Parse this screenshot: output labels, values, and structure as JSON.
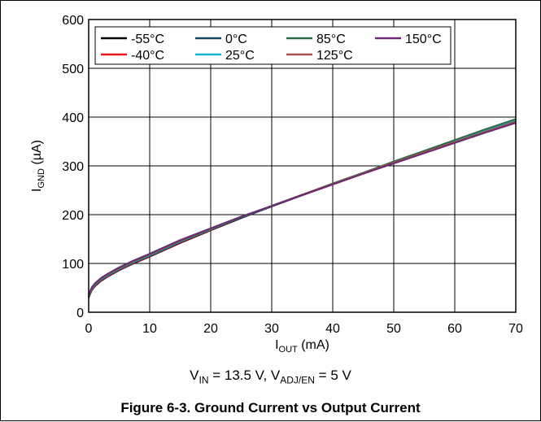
{
  "chart_data": {
    "type": "line",
    "ylabel_main": "I",
    "ylabel_sub": "GND",
    "ylabel_unit": " (µA)",
    "xlabel_main": "I",
    "xlabel_sub": "OUT",
    "xlabel_unit": " (mA)",
    "xlim": [
      0,
      70
    ],
    "ylim": [
      0,
      600
    ],
    "xticks": [
      0,
      10,
      20,
      30,
      40,
      50,
      60,
      70
    ],
    "yticks": [
      0,
      100,
      200,
      300,
      400,
      500,
      600
    ],
    "grid": true,
    "legend_position": "top-left",
    "x": [
      0,
      0.5,
      1,
      2,
      3,
      5,
      7,
      10,
      15,
      20,
      25,
      30,
      35,
      40,
      45,
      50,
      55,
      60,
      65,
      70
    ],
    "series": [
      {
        "name": "-55°C",
        "color": "#000000",
        "values": [
          30,
          45,
          53,
          64,
          72,
          86,
          98,
          114,
          142,
          168,
          193,
          217,
          240,
          262,
          284,
          306,
          327,
          348,
          369,
          390
        ]
      },
      {
        "name": "-40°C",
        "color": "#e8141b",
        "values": [
          31,
          46,
          54,
          65,
          73,
          87,
          99,
          115,
          143,
          169,
          194,
          217,
          240,
          262,
          284,
          306,
          328,
          349,
          370,
          391
        ]
      },
      {
        "name": "0°C",
        "color": "#17455f",
        "values": [
          32,
          47,
          55,
          66,
          74,
          88,
          100,
          116,
          144,
          170,
          194,
          217,
          240,
          263,
          285,
          307,
          329,
          351,
          372,
          393
        ]
      },
      {
        "name": "25°C",
        "color": "#1ab4cc",
        "values": [
          33,
          48,
          56,
          67,
          75,
          89,
          101,
          117,
          145,
          170,
          195,
          218,
          241,
          263,
          286,
          308,
          330,
          352,
          373,
          394
        ]
      },
      {
        "name": "85°C",
        "color": "#2d6b47",
        "values": [
          34,
          49,
          57,
          68,
          76,
          90,
          102,
          118,
          146,
          171,
          195,
          218,
          241,
          264,
          286,
          309,
          331,
          353,
          375,
          396
        ]
      },
      {
        "name": "125°C",
        "color": "#a64d4d",
        "values": [
          35,
          50,
          58,
          69,
          77,
          91,
          103,
          119,
          147,
          172,
          196,
          218,
          241,
          263,
          285,
          307,
          328,
          349,
          370,
          391
        ]
      },
      {
        "name": "150°C",
        "color": "#6a2a77",
        "values": [
          36,
          51,
          59,
          70,
          78,
          92,
          104,
          120,
          148,
          172,
          196,
          218,
          240,
          262,
          284,
          305,
          326,
          347,
          368,
          388
        ]
      }
    ]
  },
  "conditions": {
    "vin_main": "V",
    "vin_sub": "IN",
    "vin_rest": " = 13.5 V, ",
    "vadj_main": "V",
    "vadj_sub": "ADJ/EN",
    "vadj_rest": " = 5 V"
  },
  "caption": "Figure 6-3. Ground Current vs Output Current"
}
